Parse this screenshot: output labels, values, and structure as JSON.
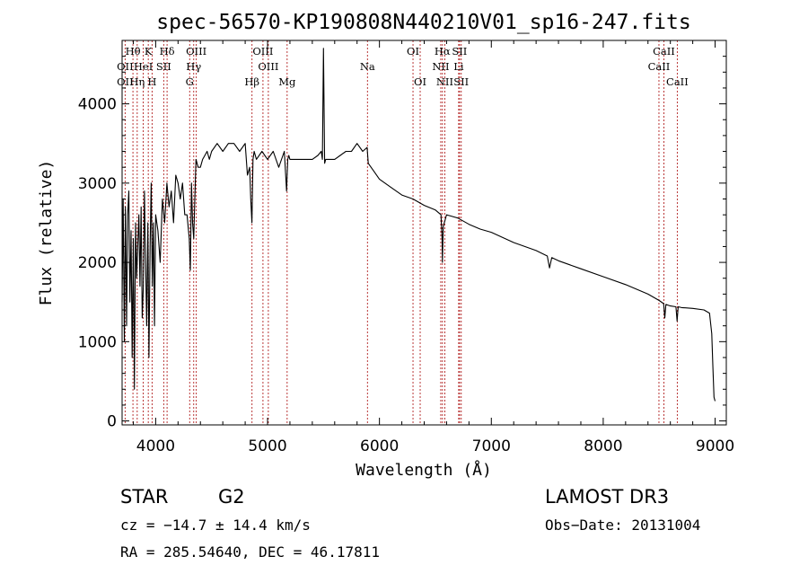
{
  "chart_data": {
    "type": "line",
    "title": "spec-56570-KP190808N440210V01_sp16-247.fits",
    "xlabel": "Wavelength (Å)",
    "ylabel": "Flux (relative)",
    "xlim": [
      3700,
      9100
    ],
    "ylim": [
      -50,
      4800
    ],
    "x_ticks": [
      4000,
      5000,
      6000,
      7000,
      8000,
      9000
    ],
    "x_tick_labels": [
      "4000",
      "5000",
      "6000",
      "7000",
      "8000",
      "9000"
    ],
    "y_ticks": [
      0,
      1000,
      2000,
      3000,
      4000
    ],
    "y_tick_labels": [
      "0",
      "1000",
      "2000",
      "3000",
      "4000"
    ],
    "grid": false,
    "series": [
      {
        "name": "flux",
        "x": [
          3700,
          3710,
          3720,
          3730,
          3740,
          3750,
          3760,
          3770,
          3780,
          3790,
          3800,
          3810,
          3820,
          3830,
          3840,
          3850,
          3860,
          3870,
          3880,
          3890,
          3900,
          3910,
          3920,
          3930,
          3940,
          3950,
          3960,
          3970,
          3980,
          3990,
          4000,
          4020,
          4040,
          4060,
          4080,
          4100,
          4120,
          4140,
          4160,
          4180,
          4200,
          4220,
          4240,
          4260,
          4280,
          4300,
          4310,
          4320,
          4330,
          4340,
          4350,
          4360,
          4380,
          4400,
          4420,
          4440,
          4460,
          4480,
          4500,
          4550,
          4600,
          4650,
          4700,
          4750,
          4800,
          4820,
          4840,
          4850,
          4860,
          4870,
          4880,
          4900,
          4950,
          5000,
          5050,
          5100,
          5150,
          5170,
          5180,
          5190,
          5200,
          5250,
          5300,
          5350,
          5400,
          5450,
          5480,
          5490,
          5500,
          5510,
          5520,
          5550,
          5600,
          5650,
          5700,
          5750,
          5800,
          5850,
          5890,
          5900,
          5950,
          6000,
          6100,
          6200,
          6300,
          6400,
          6500,
          6550,
          6560,
          6563,
          6570,
          6600,
          6700,
          6800,
          6900,
          7000,
          7200,
          7400,
          7500,
          7520,
          7540,
          7600,
          7800,
          8000,
          8200,
          8400,
          8500,
          8540,
          8550,
          8560,
          8600,
          8650,
          8660,
          8670,
          8700,
          8800,
          8900,
          8950,
          8970,
          8980,
          8990,
          9000
        ],
        "values": [
          1500,
          2800,
          1000,
          2700,
          1200,
          2600,
          2900,
          1500,
          2400,
          800,
          2300,
          400,
          2500,
          1800,
          2200,
          2600,
          1700,
          2700,
          1300,
          1700,
          2900,
          2000,
          1200,
          2500,
          800,
          2200,
          3000,
          1700,
          2500,
          1200,
          2600,
          2400,
          2000,
          2800,
          2500,
          3000,
          2700,
          2900,
          2500,
          3100,
          3000,
          2800,
          3000,
          2600,
          2600,
          2300,
          1900,
          3000,
          2500,
          2300,
          2800,
          3300,
          3200,
          3200,
          3300,
          3350,
          3400,
          3300,
          3400,
          3500,
          3400,
          3500,
          3500,
          3400,
          3500,
          3100,
          3200,
          2800,
          2500,
          3300,
          3400,
          3300,
          3400,
          3300,
          3400,
          3200,
          3400,
          2900,
          3300,
          3350,
          3300,
          3300,
          3300,
          3300,
          3300,
          3350,
          3400,
          3300,
          4700,
          3250,
          3300,
          3300,
          3300,
          3350,
          3400,
          3400,
          3500,
          3400,
          3450,
          3250,
          3150,
          3050,
          2950,
          2850,
          2800,
          2720,
          2660,
          2600,
          2300,
          2000,
          2450,
          2600,
          2560,
          2480,
          2420,
          2380,
          2250,
          2150,
          2080,
          1930,
          2060,
          2020,
          1920,
          1820,
          1720,
          1600,
          1520,
          1480,
          1300,
          1470,
          1450,
          1440,
          1260,
          1440,
          1430,
          1420,
          1400,
          1360,
          1100,
          700,
          300,
          250
        ]
      }
    ],
    "spectral_lines": [
      {
        "label": "Hθ",
        "x": 3797,
        "row": 0
      },
      {
        "label": "OII",
        "x": 3727,
        "row": 1
      },
      {
        "label": "OII",
        "x": 3727,
        "row": 2
      },
      {
        "label": "K",
        "x": 3934,
        "row": 0
      },
      {
        "label": "HeI",
        "x": 3889,
        "row": 1
      },
      {
        "label": "Hη",
        "x": 3835,
        "row": 2
      },
      {
        "label": "Hδ",
        "x": 4102,
        "row": 0
      },
      {
        "label": "SII",
        "x": 4072,
        "row": 1
      },
      {
        "label": "H",
        "x": 3968,
        "row": 2
      },
      {
        "label": "OIII",
        "x": 4363,
        "row": 0
      },
      {
        "label": "Hγ",
        "x": 4340,
        "row": 1
      },
      {
        "label": "G",
        "x": 4304,
        "row": 2
      },
      {
        "label": "OIII",
        "x": 4959,
        "row": 0
      },
      {
        "label": "OIII",
        "x": 5007,
        "row": 1
      },
      {
        "label": "Hβ",
        "x": 4861,
        "row": 2
      },
      {
        "label": "Mg",
        "x": 5175,
        "row": 2
      },
      {
        "label": "Na",
        "x": 5893,
        "row": 1
      },
      {
        "label": "OI",
        "x": 6300,
        "row": 0
      },
      {
        "label": "OI",
        "x": 6364,
        "row": 2
      },
      {
        "label": "Hα",
        "x": 6563,
        "row": 0
      },
      {
        "label": "SII",
        "x": 6716,
        "row": 0
      },
      {
        "label": "NII",
        "x": 6548,
        "row": 1
      },
      {
        "label": "Li",
        "x": 6708,
        "row": 1
      },
      {
        "label": "NII",
        "x": 6584,
        "row": 2
      },
      {
        "label": "SII",
        "x": 6731,
        "row": 2
      },
      {
        "label": "CaII",
        "x": 8542,
        "row": 0
      },
      {
        "label": "CaII",
        "x": 8498,
        "row": 1
      },
      {
        "label": "CaII",
        "x": 8662,
        "row": 2
      }
    ]
  },
  "info": {
    "class_label": "STAR",
    "subclass": "G2",
    "survey": "LAMOST DR3",
    "cz": "cz = −14.7 ± 14.4 km/s",
    "obs_date": "Obs−Date: 20131004",
    "coords": "RA = 285.54640, DEC =  46.17811"
  },
  "colors": {
    "line": "#000000",
    "marker": "#b22222",
    "background": "#ffffff"
  }
}
